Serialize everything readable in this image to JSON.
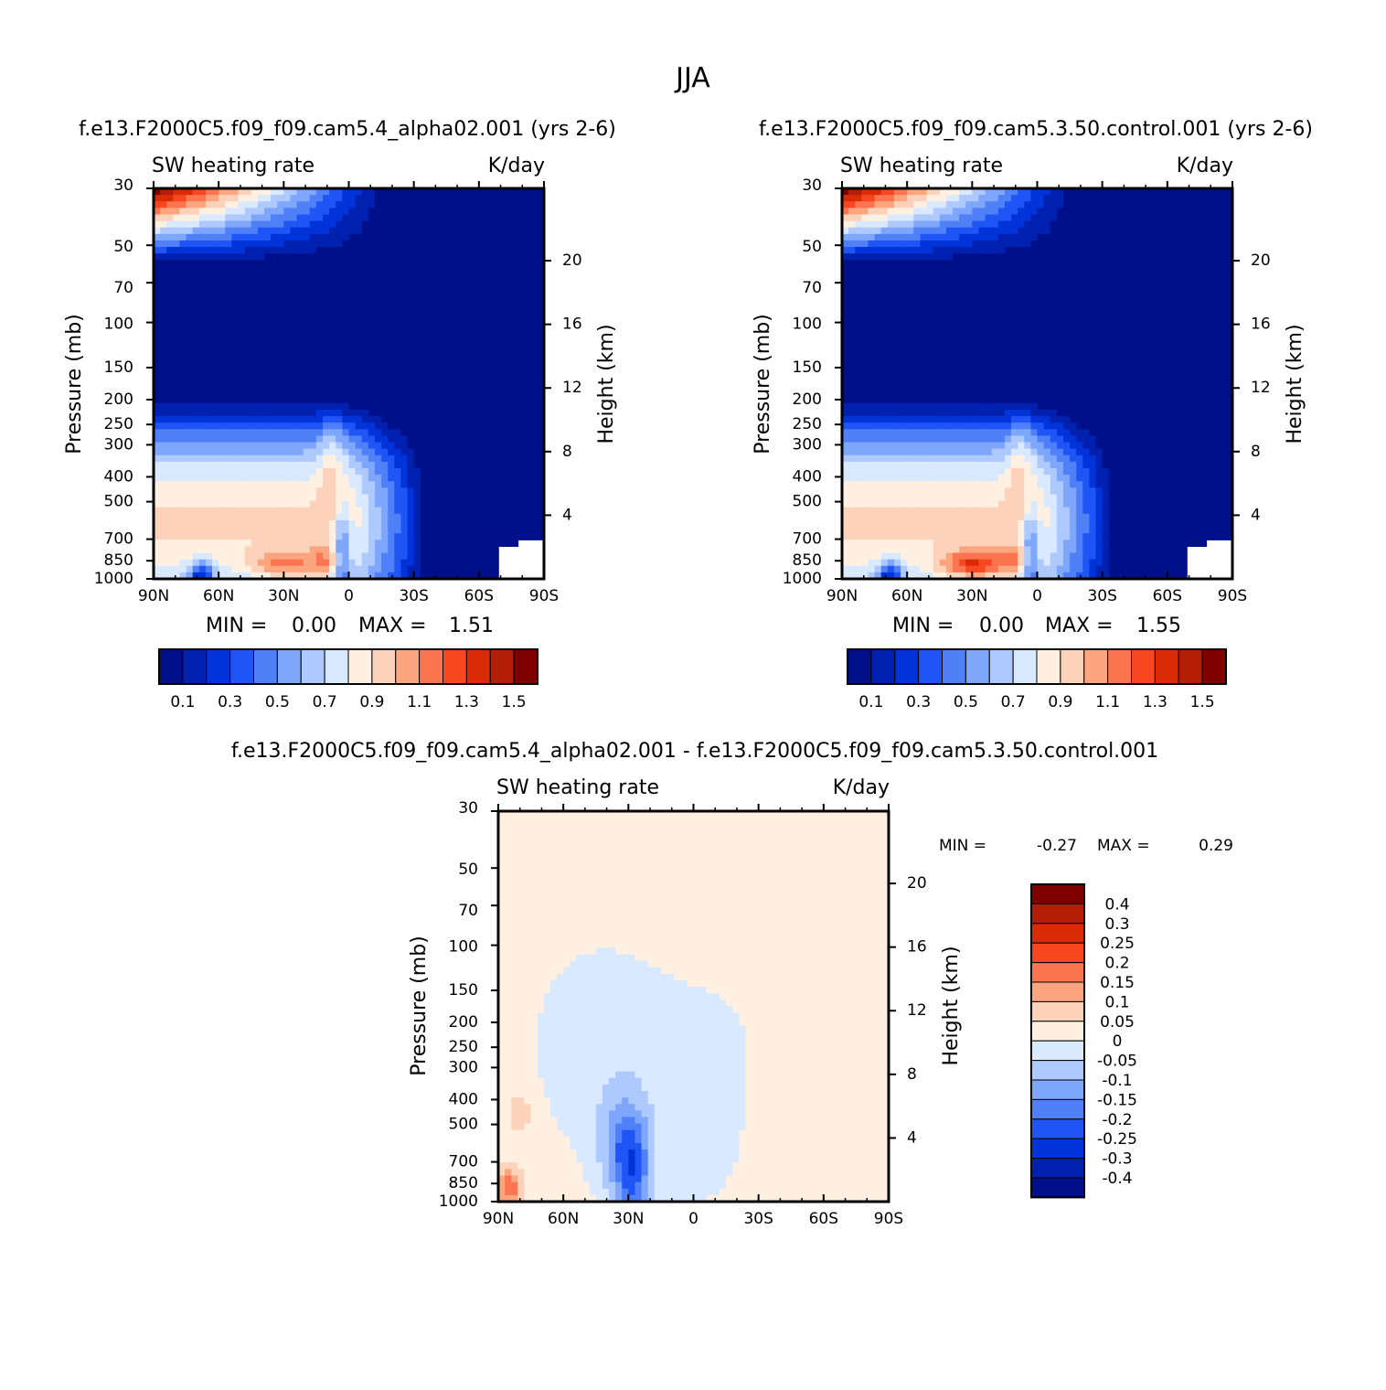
{
  "title": "JJA",
  "colors": {
    "abs_levels": [
      "#000f8a",
      "#0021b0",
      "#0033d9",
      "#1f55f5",
      "#4f80f8",
      "#7ea6fb",
      "#aec9fd",
      "#d9e9ff",
      "#fff0e2",
      "#fdd2bb",
      "#fca57f",
      "#fb7650",
      "#f84621",
      "#d92c06",
      "#b51e06",
      "#800000"
    ],
    "diff_levels": [
      "#000f8a",
      "#0021b0",
      "#0033d9",
      "#1f55f5",
      "#4f80f8",
      "#7ea6fb",
      "#aec9fd",
      "#d9e9ff",
      "#fff0e2",
      "#fdd2bb",
      "#fca57f",
      "#fb7650",
      "#f84621",
      "#d92c06",
      "#b51e06",
      "#800000"
    ]
  },
  "panel_left": {
    "title": "f.e13.F2000C5.f09_f09.cam5.4_alpha02.001 (yrs 2-6)",
    "left_label": "SW heating rate",
    "right_label": "K/day",
    "min_label": "MIN =",
    "min_value": "0.00",
    "max_label": "MAX =",
    "max_value": "1.51"
  },
  "panel_right": {
    "title": "f.e13.F2000C5.f09_f09.cam5.3.50.control.001 (yrs 2-6)",
    "left_label": "SW heating rate",
    "right_label": "K/day",
    "min_label": "MIN =",
    "min_value": "0.00",
    "max_label": "MAX =",
    "max_value": "1.55"
  },
  "panel_diff": {
    "title": "f.e13.F2000C5.f09_f09.cam5.4_alpha02.001 - f.e13.F2000C5.f09_f09.cam5.3.50.control.001",
    "left_label": "SW heating rate",
    "right_label": "K/day",
    "min_label": "MIN =",
    "min_value": "-0.27",
    "max_label": "MAX =",
    "max_value": "0.29"
  },
  "chart_data": [
    {
      "type": "heatmap",
      "title": "f.e13.F2000C5.f09_f09.cam5.4_alpha02.001 (yrs 2-6)",
      "variable": "SW heating rate",
      "units": "K/day",
      "ylabel": "Pressure (mb)",
      "ylabel_right": "Height (km)",
      "x_ticks": [
        "90N",
        "60N",
        "30N",
        "0",
        "30S",
        "60S",
        "90S"
      ],
      "y_ticks": [
        30,
        50,
        70,
        100,
        150,
        200,
        250,
        300,
        400,
        500,
        700,
        850,
        1000
      ],
      "y_ticks_right": [
        20,
        16,
        12,
        8,
        4
      ],
      "xlim": [
        90,
        -90
      ],
      "ylim": [
        1000,
        30
      ],
      "y_scale": "log",
      "colorbar_labels": [
        "0.1",
        "0.3",
        "0.5",
        "0.7",
        "0.9",
        "1.1",
        "1.3",
        "1.5"
      ],
      "levels": [
        0.1,
        0.2,
        0.3,
        0.4,
        0.5,
        0.6,
        0.7,
        0.8,
        0.9,
        1.0,
        1.1,
        1.2,
        1.3,
        1.4,
        1.5
      ],
      "min": 0.0,
      "max": 1.51
    },
    {
      "type": "heatmap",
      "title": "f.e13.F2000C5.f09_f09.cam5.3.50.control.001 (yrs 2-6)",
      "variable": "SW heating rate",
      "units": "K/day",
      "ylabel": "Pressure (mb)",
      "ylabel_right": "Height (km)",
      "x_ticks": [
        "90N",
        "60N",
        "30N",
        "0",
        "30S",
        "60S",
        "90S"
      ],
      "y_ticks": [
        30,
        50,
        70,
        100,
        150,
        200,
        250,
        300,
        400,
        500,
        700,
        850,
        1000
      ],
      "y_ticks_right": [
        20,
        16,
        12,
        8,
        4
      ],
      "xlim": [
        90,
        -90
      ],
      "ylim": [
        1000,
        30
      ],
      "y_scale": "log",
      "colorbar_labels": [
        "0.1",
        "0.3",
        "0.5",
        "0.7",
        "0.9",
        "1.1",
        "1.3",
        "1.5"
      ],
      "levels": [
        0.1,
        0.2,
        0.3,
        0.4,
        0.5,
        0.6,
        0.7,
        0.8,
        0.9,
        1.0,
        1.1,
        1.2,
        1.3,
        1.4,
        1.5
      ],
      "min": 0.0,
      "max": 1.55
    },
    {
      "type": "heatmap",
      "title": "f.e13.F2000C5.f09_f09.cam5.4_alpha02.001 - f.e13.F2000C5.f09_f09.cam5.3.50.control.001",
      "variable": "SW heating rate",
      "units": "K/day",
      "ylabel": "Pressure (mb)",
      "ylabel_right": "Height (km)",
      "x_ticks": [
        "90N",
        "60N",
        "30N",
        "0",
        "30S",
        "60S",
        "90S"
      ],
      "y_ticks": [
        30,
        50,
        70,
        100,
        150,
        200,
        250,
        300,
        400,
        500,
        700,
        850,
        1000
      ],
      "y_ticks_right": [
        20,
        16,
        12,
        8,
        4
      ],
      "xlim": [
        90,
        -90
      ],
      "ylim": [
        1000,
        30
      ],
      "y_scale": "log",
      "colorbar_labels": [
        "0.4",
        "0.3",
        "0.25",
        "0.2",
        "0.15",
        "0.1",
        "0.05",
        "0",
        "-0.05",
        "-0.1",
        "-0.15",
        "-0.2",
        "-0.25",
        "-0.3",
        "-0.4"
      ],
      "levels": [
        -0.4,
        -0.3,
        -0.25,
        -0.2,
        -0.15,
        -0.1,
        -0.05,
        0,
        0.05,
        0.1,
        0.15,
        0.2,
        0.25,
        0.3,
        0.4
      ],
      "min": -0.27,
      "max": 0.29
    }
  ]
}
